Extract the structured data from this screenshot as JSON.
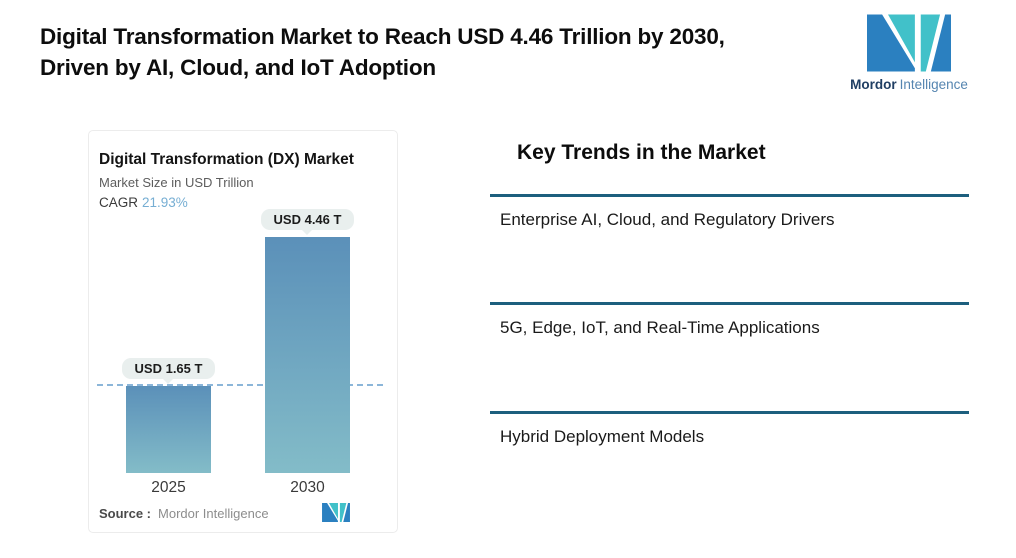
{
  "header": {
    "headline": "Digital Transformation Market to Reach USD 4.46 Trillion by 2030, Driven by AI, Cloud, and IoT Adoption"
  },
  "brand": {
    "name_bold": "Mordor",
    "name_light": "Intelligence",
    "teal": "#41c1c9",
    "blue": "#2b80c0",
    "name_bold_color": "#1f3e63",
    "name_light_color": "#5585b0"
  },
  "chart_card": {
    "title": "Digital Transformation (DX) Market",
    "subtitle": "Market Size in USD Trillion",
    "cagr_label": "CAGR",
    "cagr_value": "21.93%",
    "cagr_value_color": "#76aed3",
    "source_label": "Source :",
    "source_value": "Mordor Intelligence"
  },
  "chart_data": {
    "type": "bar",
    "title": "Digital Transformation (DX) Market",
    "ylabel": "Market Size in USD Trillion",
    "cagr_percent": 21.93,
    "categories": [
      "2025",
      "2030"
    ],
    "values": [
      1.65,
      4.46
    ],
    "value_labels": [
      "USD 1.65 T",
      "USD 4.46 T"
    ],
    "ylim": [
      0,
      4.46
    ],
    "grid": false,
    "legend": false,
    "reference_line": {
      "value": 1.65,
      "style": "dashed",
      "color": "#8cb6d9"
    },
    "bar_gradient_top": "#5b90b9",
    "bar_gradient_bottom": "#83bcc8"
  },
  "trends": {
    "heading": "Key Trends in the Market",
    "divider_color": "#1d5f7e",
    "items": [
      {
        "label": "Enterprise AI, Cloud, and Regulatory Drivers"
      },
      {
        "label": "5G, Edge, IoT, and Real-Time Applications"
      },
      {
        "label": "Hybrid Deployment Models"
      }
    ]
  }
}
